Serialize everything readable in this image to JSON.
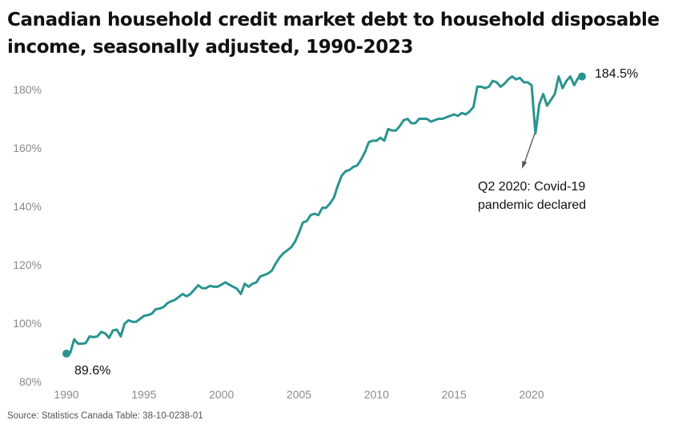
{
  "chart_data": {
    "type": "line",
    "title": "Canadian household credit market debt to household disposable income, seasonally adjusted, 1990-2023",
    "xlabel": "",
    "ylabel": "",
    "xlim": [
      1989.5,
      2023.7
    ],
    "ylim": [
      80,
      190
    ],
    "x_ticks": [
      1990,
      1995,
      2000,
      2005,
      2010,
      2015,
      2020
    ],
    "y_ticks": [
      80,
      100,
      120,
      140,
      160,
      180
    ],
    "y_tick_suffix": "%",
    "grid": false,
    "line_color": "#2a9490",
    "series": [
      {
        "x": [
          1990.0,
          1990.25,
          1990.5,
          1990.75,
          1991.0,
          1991.25,
          1991.5,
          1991.75,
          1992.0,
          1992.25,
          1992.5,
          1992.75,
          1993.0,
          1993.25,
          1993.5,
          1993.75,
          1994.0,
          1994.25,
          1994.5,
          1994.75,
          1995.0,
          1995.25,
          1995.5,
          1995.75,
          1996.0,
          1996.25,
          1996.5,
          1996.75,
          1997.0,
          1997.25,
          1997.5,
          1997.75,
          1998.0,
          1998.25,
          1998.5,
          1998.75,
          1999.0,
          1999.25,
          1999.5,
          1999.75,
          2000.0,
          2000.25,
          2000.5,
          2000.75,
          2001.0,
          2001.25,
          2001.5,
          2001.75,
          2002.0,
          2002.25,
          2002.5,
          2002.75,
          2003.0,
          2003.25,
          2003.5,
          2003.75,
          2004.0,
          2004.25,
          2004.5,
          2004.75,
          2005.0,
          2005.25,
          2005.5,
          2005.75,
          2006.0,
          2006.25,
          2006.5,
          2006.75,
          2007.0,
          2007.25,
          2007.5,
          2007.75,
          2008.0,
          2008.25,
          2008.5,
          2008.75,
          2009.0,
          2009.25,
          2009.5,
          2009.75,
          2010.0,
          2010.25,
          2010.5,
          2010.75,
          2011.0,
          2011.25,
          2011.5,
          2011.75,
          2012.0,
          2012.25,
          2012.5,
          2012.75,
          2013.0,
          2013.25,
          2013.5,
          2013.75,
          2014.0,
          2014.25,
          2014.5,
          2014.75,
          2015.0,
          2015.25,
          2015.5,
          2015.75,
          2016.0,
          2016.25,
          2016.5,
          2016.75,
          2017.0,
          2017.25,
          2017.5,
          2017.75,
          2018.0,
          2018.25,
          2018.5,
          2018.75,
          2019.0,
          2019.25,
          2019.5,
          2019.75,
          2020.0,
          2020.25,
          2020.5,
          2020.75,
          2021.0,
          2021.25,
          2021.5,
          2021.75,
          2022.0,
          2022.25,
          2022.5,
          2022.75,
          2023.0,
          2023.25
        ],
        "y": [
          89.6,
          89.8,
          94.5,
          93.0,
          93.0,
          93.2,
          95.5,
          95.2,
          95.5,
          97.0,
          96.5,
          95.0,
          97.5,
          97.8,
          95.5,
          99.8,
          101.0,
          100.5,
          100.5,
          101.5,
          102.5,
          102.8,
          103.2,
          104.8,
          105.0,
          105.5,
          106.8,
          107.5,
          108.0,
          109.0,
          110.0,
          109.2,
          110.0,
          111.5,
          113.0,
          112.0,
          112.0,
          112.8,
          112.5,
          112.5,
          113.2,
          114.0,
          113.2,
          112.5,
          111.8,
          110.0,
          113.5,
          112.5,
          113.5,
          114.0,
          116.0,
          116.5,
          117.0,
          118.0,
          120.5,
          122.5,
          124.0,
          125.0,
          126.0,
          128.0,
          131.0,
          134.5,
          135.0,
          137.0,
          137.5,
          137.0,
          139.5,
          139.5,
          141.0,
          143.0,
          147.0,
          150.5,
          152.0,
          152.5,
          153.5,
          154.0,
          156.0,
          158.5,
          162.0,
          162.5,
          162.5,
          163.5,
          162.5,
          166.5,
          166.0,
          166.0,
          167.5,
          169.5,
          170.0,
          168.5,
          168.5,
          170.0,
          170.0,
          170.0,
          169.0,
          169.5,
          170.0,
          170.0,
          170.5,
          171.0,
          171.5,
          171.0,
          172.0,
          171.5,
          172.5,
          174.0,
          181.0,
          181.0,
          180.5,
          181.0,
          183.0,
          182.5,
          181.0,
          182.0,
          183.5,
          184.5,
          183.5,
          184.0,
          182.5,
          182.5,
          181.5,
          165.0,
          175.0,
          178.5,
          174.5,
          176.5,
          178.5,
          184.5,
          180.5,
          183.0,
          184.5,
          181.5,
          184.0,
          184.5
        ]
      }
    ],
    "annotations": {
      "start_label": "89.6%",
      "end_label": "184.5%",
      "covid_line1": "Q2 2020: Covid-19",
      "covid_line2": "pandemic declared"
    }
  },
  "source": "Source: Statistics Canada Table: 38-10-0238-01"
}
